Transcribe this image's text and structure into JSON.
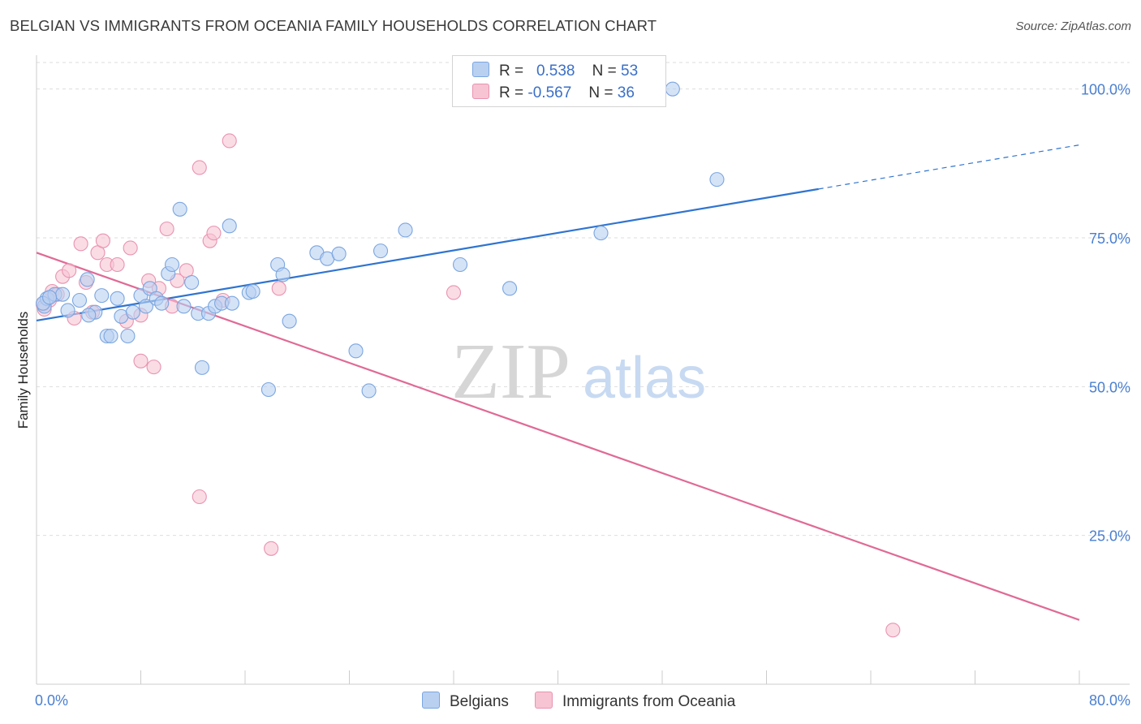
{
  "header": {
    "title": "BELGIAN VS IMMIGRANTS FROM OCEANIA FAMILY HOUSEHOLDS CORRELATION CHART",
    "source": "Source: ZipAtlas.com"
  },
  "legend": {
    "rows": [
      {
        "r_label": "R =",
        "r_value": "0.538",
        "n_label": "N =",
        "n_value": "53"
      },
      {
        "r_label": "R =",
        "r_value": "-0.567",
        "n_label": "N =",
        "n_value": "36"
      }
    ]
  },
  "watermark": {
    "zip": "ZIP",
    "atlas": "atlas"
  },
  "colors": {
    "belgians_fill": "#b9d0f1",
    "belgians_stroke": "#7aa6e0",
    "belgians_line": "#2f74d0",
    "oceania_fill": "#f7c4d3",
    "oceania_stroke": "#e993b0",
    "oceania_line": "#e06a95",
    "tick_text": "#4a7fd0"
  },
  "chart_data": {
    "type": "scatter",
    "title": "BELGIAN VS IMMIGRANTS FROM OCEANIA FAMILY HOUSEHOLDS CORRELATION CHART",
    "xlabel": "",
    "ylabel": "Family Households",
    "xlim": [
      0,
      80
    ],
    "ylim": [
      0,
      105
    ],
    "x_tick_labels": [
      "0.0%",
      "80.0%"
    ],
    "y_ticks": [
      25,
      50,
      75,
      100
    ],
    "y_tick_labels": [
      "25.0%",
      "50.0%",
      "75.0%",
      "100.0%"
    ],
    "grid": true,
    "legend_position": "top-center",
    "series": [
      {
        "name": "Belgians",
        "r": 0.538,
        "n": 53,
        "trend": {
          "x": [
            0,
            60
          ],
          "y": [
            61.1,
            83.2
          ],
          "dashed_to": [
            80,
            90.6
          ]
        },
        "points": [
          [
            0.6,
            63.5
          ],
          [
            0.8,
            64.8
          ],
          [
            1.4,
            65.5
          ],
          [
            2.0,
            65.5
          ],
          [
            2.4,
            62.8
          ],
          [
            3.3,
            64.5
          ],
          [
            3.9,
            68.0
          ],
          [
            4.5,
            62.5
          ],
          [
            5.0,
            65.3
          ],
          [
            5.4,
            58.5
          ],
          [
            5.7,
            58.5
          ],
          [
            6.2,
            64.8
          ],
          [
            6.5,
            61.8
          ],
          [
            7.0,
            58.5
          ],
          [
            7.4,
            62.5
          ],
          [
            8.0,
            65.3
          ],
          [
            8.4,
            63.5
          ],
          [
            8.7,
            66.5
          ],
          [
            9.2,
            64.8
          ],
          [
            9.6,
            64.0
          ],
          [
            10.1,
            69.0
          ],
          [
            10.4,
            70.5
          ],
          [
            11.0,
            79.8
          ],
          [
            11.3,
            63.5
          ],
          [
            11.9,
            67.5
          ],
          [
            12.4,
            62.3
          ],
          [
            12.7,
            53.2
          ],
          [
            13.2,
            62.3
          ],
          [
            13.7,
            63.5
          ],
          [
            14.2,
            64.0
          ],
          [
            14.8,
            77.0
          ],
          [
            16.3,
            65.8
          ],
          [
            16.6,
            66.0
          ],
          [
            17.8,
            49.5
          ],
          [
            18.5,
            70.5
          ],
          [
            18.9,
            68.8
          ],
          [
            19.4,
            61.0
          ],
          [
            21.5,
            72.5
          ],
          [
            22.3,
            71.5
          ],
          [
            23.2,
            72.3
          ],
          [
            24.5,
            56.0
          ],
          [
            25.5,
            49.3
          ],
          [
            26.4,
            72.8
          ],
          [
            28.3,
            76.3
          ],
          [
            32.5,
            70.5
          ],
          [
            36.3,
            66.5
          ],
          [
            43.3,
            75.8
          ],
          [
            48.8,
            100.0
          ],
          [
            52.2,
            84.8
          ],
          [
            0.5,
            64.0
          ],
          [
            1.0,
            65.0
          ],
          [
            4.0,
            62.0
          ],
          [
            15.0,
            64.0
          ]
        ]
      },
      {
        "name": "Immigrants from Oceania",
        "r": -0.567,
        "n": 36,
        "trend": {
          "x": [
            0,
            80
          ],
          "y": [
            72.5,
            10.8
          ]
        },
        "points": [
          [
            0.5,
            63.8
          ],
          [
            1.2,
            66.0
          ],
          [
            1.6,
            65.5
          ],
          [
            2.0,
            68.5
          ],
          [
            2.5,
            69.5
          ],
          [
            2.9,
            61.5
          ],
          [
            3.4,
            74.0
          ],
          [
            3.8,
            67.5
          ],
          [
            4.3,
            62.5
          ],
          [
            4.7,
            72.5
          ],
          [
            5.1,
            74.5
          ],
          [
            5.4,
            70.5
          ],
          [
            6.2,
            70.5
          ],
          [
            6.9,
            61.0
          ],
          [
            7.2,
            73.3
          ],
          [
            8.0,
            54.3
          ],
          [
            8.0,
            62.0
          ],
          [
            8.6,
            67.8
          ],
          [
            9.0,
            53.3
          ],
          [
            9.4,
            66.5
          ],
          [
            10.0,
            76.5
          ],
          [
            10.4,
            63.5
          ],
          [
            10.8,
            67.8
          ],
          [
            11.5,
            69.5
          ],
          [
            12.5,
            86.8
          ],
          [
            12.5,
            31.5
          ],
          [
            13.3,
            74.5
          ],
          [
            13.6,
            75.8
          ],
          [
            14.3,
            64.5
          ],
          [
            14.8,
            91.3
          ],
          [
            18.0,
            22.8
          ],
          [
            18.6,
            66.5
          ],
          [
            32.0,
            65.8
          ],
          [
            65.7,
            9.1
          ],
          [
            1.0,
            64.5
          ],
          [
            0.6,
            63.0
          ]
        ]
      }
    ]
  },
  "bottom_legend": {
    "belgians": "Belgians",
    "oceania": "Immigrants from Oceania"
  }
}
